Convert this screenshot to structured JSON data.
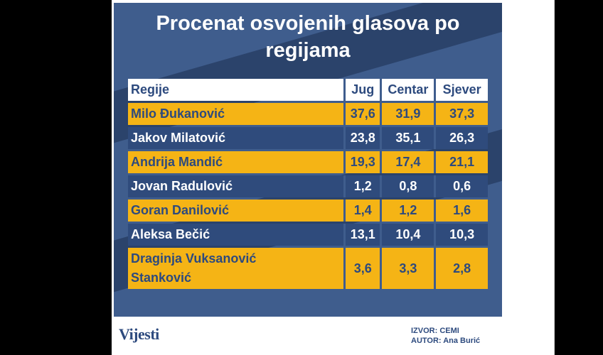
{
  "title": "Procenat osvojenih glasova po regijama",
  "title_lines": [
    "Procenat osvojenih glasova po",
    "regijama"
  ],
  "header": {
    "row_label": "Regije",
    "cols": [
      "Jug",
      "Centar",
      "Sjever"
    ]
  },
  "rows": [
    {
      "name": "Milo Đukanović",
      "values": [
        "37,6",
        "31,9",
        "37,3"
      ]
    },
    {
      "name": "Jakov Milatović",
      "values": [
        "23,8",
        "35,1",
        "26,3"
      ]
    },
    {
      "name": "Andrija Mandić",
      "values": [
        "19,3",
        "17,4",
        "21,1"
      ]
    },
    {
      "name": "Jovan Radulović",
      "values": [
        "1,2",
        "0,8",
        "0,6"
      ]
    },
    {
      "name": "Goran Danilović",
      "values": [
        "1,4",
        "1,2",
        "1,6"
      ]
    },
    {
      "name": "Aleksa Bečić",
      "values": [
        "13,1",
        "10,4",
        "10,3"
      ]
    },
    {
      "name": "Draginja Vuksanović Stanković",
      "name_lines": [
        "Draginja Vuksanović",
        "Stanković"
      ],
      "values": [
        "3,6",
        "3,3",
        "2,8"
      ]
    }
  ],
  "chart_data": {
    "type": "table",
    "title": "Procenat osvojenih glasova po regijama",
    "columns": [
      "Regije",
      "Jug",
      "Centar",
      "Sjever"
    ],
    "categories": [
      "Jug",
      "Centar",
      "Sjever"
    ],
    "series": [
      {
        "name": "Milo Đukanović",
        "values": [
          37.6,
          31.9,
          37.3
        ]
      },
      {
        "name": "Jakov Milatović",
        "values": [
          23.8,
          35.1,
          26.3
        ]
      },
      {
        "name": "Andrija Mandić",
        "values": [
          19.3,
          17.4,
          21.1
        ]
      },
      {
        "name": "Jovan Radulović",
        "values": [
          1.2,
          0.8,
          0.6
        ]
      },
      {
        "name": "Goran Danilović",
        "values": [
          1.4,
          1.2,
          1.6
        ]
      },
      {
        "name": "Aleksa Bečić",
        "values": [
          13.1,
          10.4,
          10.3
        ]
      },
      {
        "name": "Draginja Vuksanović Stanković",
        "values": [
          3.6,
          3.3,
          2.8
        ]
      }
    ]
  },
  "footer": {
    "logo": "Vijesti",
    "source": "IZVOR: CEMI",
    "author": "AUTOR: Ana Burić"
  },
  "colors": {
    "panel": "#3f5d8d",
    "row_gold": "#f5b415",
    "row_blue": "#2f4b7c",
    "text_dark": "#2d4a7e"
  }
}
